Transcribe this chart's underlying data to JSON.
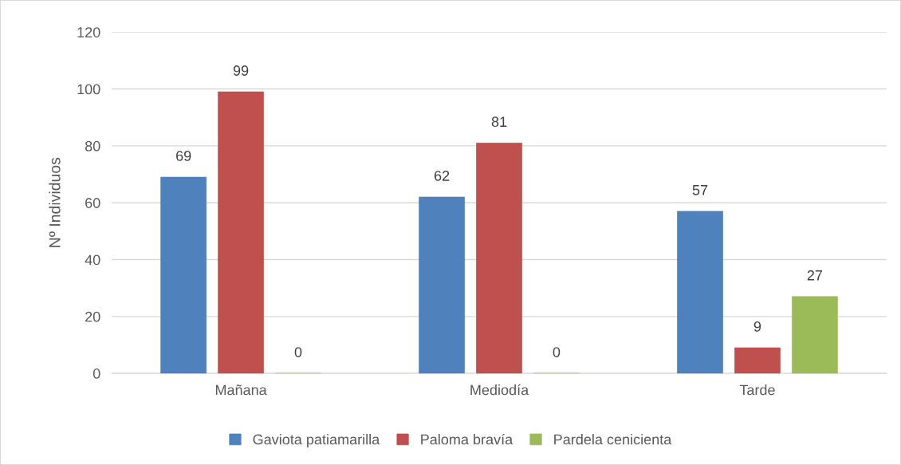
{
  "chart_data": {
    "type": "bar",
    "ylabel": "Nº Individuos",
    "categories": [
      "Mañana",
      "Mediodía",
      "Tarde"
    ],
    "series": [
      {
        "name": "Gaviota patiamarilla",
        "color": "#4f81bd",
        "values": [
          69,
          62,
          57
        ]
      },
      {
        "name": "Paloma bravía",
        "color": "#c0504d",
        "values": [
          99,
          81,
          9
        ]
      },
      {
        "name": "Pardela cenicienta",
        "color": "#9bbb59",
        "values": [
          0,
          0,
          27
        ]
      }
    ],
    "ylim": [
      0,
      120
    ],
    "yticks": [
      0,
      20,
      40,
      60,
      80,
      100,
      120
    ],
    "grid": "y",
    "legend": "bottom",
    "data_labels": true
  }
}
